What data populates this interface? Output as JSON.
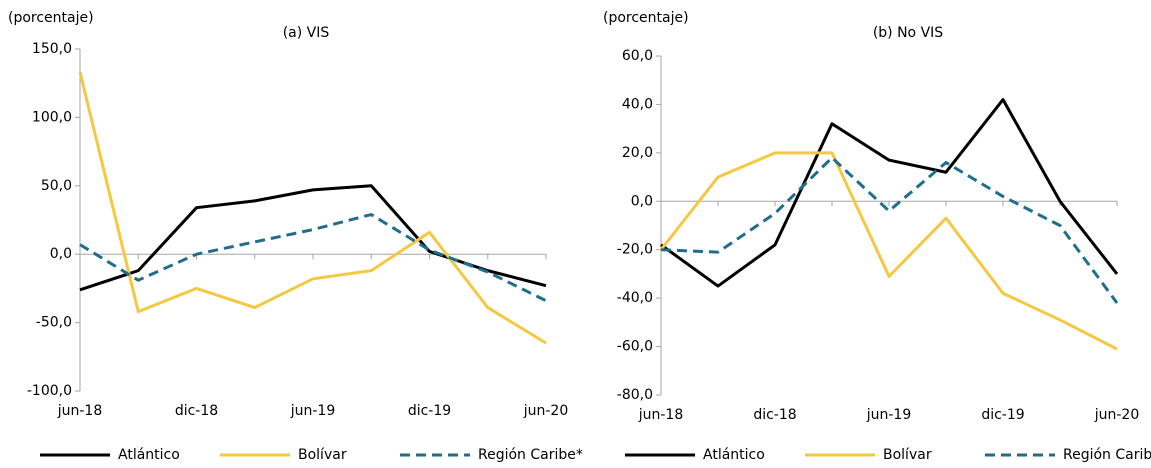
{
  "chart_data": [
    {
      "type": "line",
      "title": "(a) VIS",
      "y_label": "(porcentaje)",
      "categories": [
        "jun-18",
        null,
        "dic-18",
        null,
        "jun-19",
        null,
        "dic-19",
        null,
        "jun-20"
      ],
      "ylim": [
        -100,
        150
      ],
      "yticks": [
        {
          "value": -100,
          "label": "-100,0"
        },
        {
          "value": -50,
          "label": "-50,0"
        },
        {
          "value": 0,
          "label": "0,0"
        },
        {
          "value": 50,
          "label": "50,0"
        },
        {
          "value": 100,
          "label": "100,0"
        },
        {
          "value": 150,
          "label": "150,0"
        }
      ],
      "series": [
        {
          "name": "Atlántico",
          "color": "#000000",
          "dashed": false,
          "values": [
            -26,
            -12,
            34,
            39,
            47,
            50,
            2,
            -12,
            -23
          ]
        },
        {
          "name": "Bolívar",
          "color": "#f5c842",
          "dashed": false,
          "values": [
            133,
            -42,
            -25,
            -39,
            -18,
            -12,
            16,
            -39,
            -65
          ]
        },
        {
          "name": "Región Caribe*",
          "color": "#1f6e8c",
          "dashed": true,
          "values": [
            7,
            -19,
            0,
            9,
            18,
            29,
            3,
            -13,
            -34
          ]
        }
      ]
    },
    {
      "type": "line",
      "title": "(b) No VIS",
      "y_label": "(porcentaje)",
      "categories": [
        "jun-18",
        null,
        "dic-18",
        null,
        "jun-19",
        null,
        "dic-19",
        null,
        "jun-20"
      ],
      "ylim": [
        -80,
        60
      ],
      "yticks": [
        {
          "value": -80,
          "label": "-80,0"
        },
        {
          "value": -60,
          "label": "-60,0"
        },
        {
          "value": -40,
          "label": "-40,0"
        },
        {
          "value": -20,
          "label": "-20,0"
        },
        {
          "value": 0,
          "label": "0,0"
        },
        {
          "value": 20,
          "label": "20,0"
        },
        {
          "value": 40,
          "label": "40,0"
        },
        {
          "value": 60,
          "label": "60,0"
        }
      ],
      "series": [
        {
          "name": "Atlántico",
          "color": "#000000",
          "dashed": false,
          "values": [
            -18,
            -35,
            -18,
            32,
            17,
            12,
            42,
            0,
            -30
          ]
        },
        {
          "name": "Bolívar",
          "color": "#f5c842",
          "dashed": false,
          "values": [
            -20,
            10,
            20,
            20,
            -31,
            -7,
            -38,
            -49,
            -61
          ]
        },
        {
          "name": "Región Caribe*",
          "color": "#1f6e8c",
          "dashed": true,
          "values": [
            -20,
            -21,
            -5,
            18,
            -4,
            16,
            2,
            -10,
            -42
          ]
        }
      ]
    }
  ]
}
